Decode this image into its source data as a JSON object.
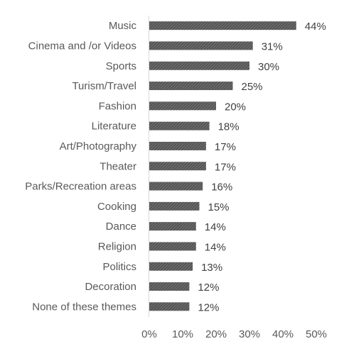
{
  "chart_data": {
    "type": "bar",
    "orientation": "horizontal",
    "categories": [
      "Music",
      "Cinema and /or Videos",
      "Sports",
      "Turism/Travel",
      "Fashion",
      "Literature",
      "Art/Photography",
      "Theater",
      "Parks/Recreation areas",
      "Cooking",
      "Dance",
      "Religion",
      "Politics",
      "Decoration",
      "None of these themes"
    ],
    "values": [
      44,
      31,
      30,
      25,
      20,
      18,
      17,
      17,
      16,
      15,
      14,
      14,
      13,
      12,
      12
    ],
    "value_labels": [
      "44%",
      "31%",
      "30%",
      "25%",
      "20%",
      "18%",
      "17%",
      "17%",
      "16%",
      "15%",
      "14%",
      "14%",
      "13%",
      "12%",
      "12%"
    ],
    "title": "",
    "xlabel": "",
    "ylabel": "",
    "xlim": [
      0,
      50
    ],
    "x_ticks": [
      0,
      10,
      20,
      30,
      40,
      50
    ],
    "x_tick_labels": [
      "0%",
      "10%",
      "20%",
      "30%",
      "40%",
      "50%"
    ],
    "grid": false,
    "legend": "none",
    "bar_color": "#595959",
    "bar_pattern": "diagonal-hatch",
    "axis_color": "#d9d9d9"
  }
}
